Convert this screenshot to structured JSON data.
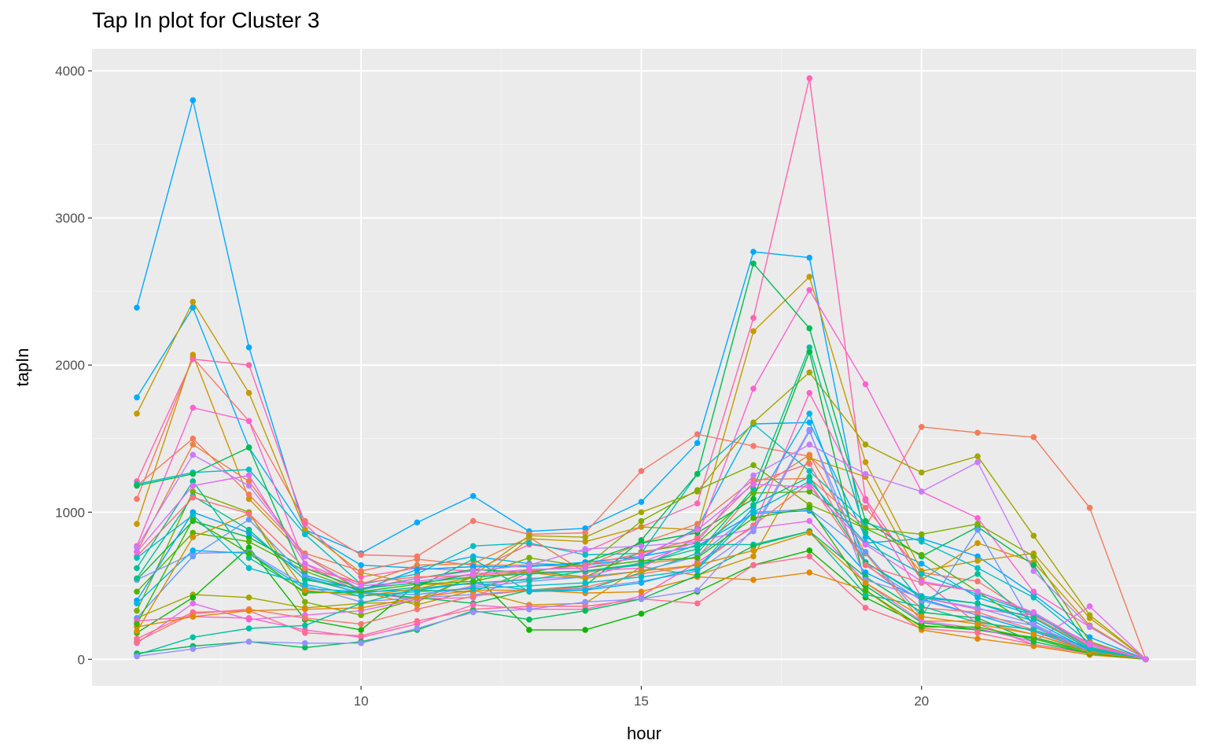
{
  "chart_data": {
    "type": "line",
    "title": "Tap In plot for Cluster 3",
    "xlabel": "hour",
    "ylabel": "tapIn",
    "x": [
      6,
      7,
      8,
      9,
      10,
      11,
      12,
      13,
      14,
      15,
      16,
      17,
      18,
      19,
      20,
      21,
      22,
      23,
      24
    ],
    "xlim": [
      5.2,
      24.9
    ],
    "ylim": [
      -180,
      4150
    ],
    "x_ticks": [
      10,
      15,
      20
    ],
    "y_ticks": [
      0,
      1000,
      2000,
      3000,
      4000
    ],
    "grid": true,
    "legend": "none",
    "background_color": "#ebebeb",
    "grid_color": "#ffffff",
    "series": [
      {
        "color": "#00a9ff",
        "values": [
          2390,
          3800,
          2120,
          880,
          720,
          930,
          1110,
          870,
          890,
          1070,
          1470,
          2770,
          2730,
          790,
          820,
          700,
          440,
          150,
          0
        ]
      },
      {
        "color": "#00b0f6",
        "values": [
          1780,
          2390,
          1440,
          870,
          640,
          620,
          700,
          650,
          640,
          690,
          890,
          1600,
          1610,
          830,
          650,
          420,
          300,
          110,
          0
        ]
      },
      {
        "color": "#f8766d",
        "values": [
          1090,
          2050,
          1620,
          940,
          710,
          700,
          940,
          850,
          860,
          1280,
          1530,
          1450,
          1380,
          1030,
          590,
          530,
          290,
          80,
          0
        ]
      },
      {
        "color": "#ff64b0",
        "values": [
          1210,
          2040,
          2000,
          920,
          560,
          620,
          600,
          780,
          730,
          900,
          1060,
          2320,
          3950,
          1090,
          540,
          240,
          100,
          40,
          0
        ]
      },
      {
        "color": "#c49a00",
        "values": [
          1670,
          2430,
          1810,
          880,
          590,
          510,
          510,
          820,
          800,
          900,
          880,
          2230,
          2600,
          1340,
          600,
          670,
          720,
          280,
          0
        ]
      },
      {
        "color": "#cd9600",
        "values": [
          920,
          2070,
          1090,
          700,
          460,
          370,
          470,
          370,
          380,
          630,
          570,
          700,
          1370,
          1240,
          540,
          790,
          660,
          230,
          0
        ]
      },
      {
        "color": "#f37b59",
        "values": [
          1180,
          1500,
          1120,
          720,
          600,
          680,
          640,
          640,
          630,
          790,
          920,
          1220,
          1230,
          900,
          1580,
          1540,
          1510,
          1030,
          0
        ]
      },
      {
        "color": "#ed8141",
        "values": [
          730,
          1460,
          1210,
          700,
          510,
          640,
          650,
          830,
          590,
          650,
          690,
          1140,
          1390,
          720,
          260,
          260,
          170,
          60,
          0
        ]
      },
      {
        "color": "#fd61d1",
        "values": [
          770,
          1710,
          1620,
          650,
          450,
          410,
          420,
          590,
          600,
          620,
          830,
          1840,
          2510,
          1870,
          1140,
          960,
          460,
          220,
          0
        ]
      },
      {
        "color": "#00bfc4",
        "values": [
          1190,
          1270,
          1290,
          850,
          510,
          580,
          770,
          790,
          710,
          720,
          1260,
          1600,
          1280,
          930,
          800,
          620,
          420,
          110,
          0
        ]
      },
      {
        "color": "#00bc56",
        "values": [
          1180,
          1260,
          1440,
          550,
          450,
          420,
          380,
          470,
          500,
          810,
          1260,
          2690,
          2250,
          940,
          700,
          900,
          640,
          80,
          0
        ]
      },
      {
        "color": "#a3a500",
        "values": [
          280,
          440,
          420,
          350,
          380,
          390,
          570,
          840,
          830,
          1000,
          1140,
          1610,
          1950,
          1460,
          1270,
          1380,
          840,
          300,
          0
        ]
      },
      {
        "color": "#7cae00",
        "values": [
          330,
          1140,
          1000,
          390,
          300,
          410,
          560,
          690,
          630,
          940,
          1150,
          1320,
          1050,
          890,
          850,
          920,
          700,
          120,
          0
        ]
      },
      {
        "color": "#00ba38",
        "values": [
          540,
          940,
          830,
          620,
          480,
          550,
          610,
          590,
          660,
          790,
          860,
          1090,
          2090,
          500,
          250,
          200,
          150,
          50,
          0
        ]
      },
      {
        "color": "#53b400",
        "values": [
          460,
          860,
          800,
          600,
          460,
          470,
          460,
          600,
          560,
          730,
          790,
          1130,
          1140,
          890,
          710,
          460,
          220,
          60,
          0
        ]
      },
      {
        "color": "#00c094",
        "values": [
          620,
          1210,
          690,
          460,
          450,
          490,
          680,
          460,
          470,
          590,
          720,
          1160,
          2120,
          860,
          390,
          580,
          240,
          40,
          0
        ]
      },
      {
        "color": "#0cb702",
        "values": [
          180,
          420,
          760,
          270,
          200,
          510,
          580,
          200,
          200,
          310,
          460,
          640,
          740,
          420,
          230,
          200,
          140,
          40,
          0
        ]
      },
      {
        "color": "#00a5ff",
        "values": [
          400,
          1000,
          860,
          570,
          470,
          610,
          630,
          630,
          660,
          700,
          770,
          990,
          1010,
          590,
          410,
          300,
          190,
          60,
          0
        ]
      },
      {
        "color": "#619cff",
        "values": [
          280,
          700,
          950,
          560,
          450,
          440,
          490,
          530,
          560,
          600,
          700,
          1000,
          1020,
          730,
          290,
          880,
          220,
          60,
          0
        ]
      },
      {
        "color": "#8494ff",
        "values": [
          540,
          720,
          730,
          500,
          390,
          420,
          440,
          470,
          480,
          530,
          600,
          870,
          1550,
          640,
          400,
          300,
          230,
          70,
          0
        ]
      },
      {
        "color": "#c77cff",
        "values": [
          760,
          1390,
          1180,
          700,
          470,
          550,
          600,
          640,
          750,
          770,
          800,
          1250,
          1460,
          1260,
          1140,
          1340,
          600,
          220,
          0
        ]
      },
      {
        "color": "#e76bf3",
        "values": [
          110,
          380,
          270,
          300,
          330,
          410,
          500,
          550,
          560,
          660,
          800,
          890,
          940,
          520,
          260,
          210,
          120,
          360,
          0
        ]
      },
      {
        "color": "#ff61c3",
        "values": [
          260,
          290,
          280,
          200,
          150,
          240,
          370,
          340,
          340,
          430,
          660,
          900,
          1810,
          1080,
          420,
          340,
          300,
          110,
          0
        ]
      },
      {
        "color": "#f8766d",
        "values": [
          120,
          310,
          340,
          280,
          240,
          340,
          430,
          470,
          490,
          580,
          640,
          910,
          1200,
          650,
          350,
          320,
          200,
          60,
          0
        ]
      },
      {
        "color": "#ff6c91",
        "values": [
          140,
          320,
          330,
          180,
          160,
          260,
          340,
          360,
          360,
          410,
          380,
          640,
          700,
          350,
          210,
          180,
          100,
          40,
          0
        ]
      },
      {
        "color": "#e58700",
        "values": [
          220,
          290,
          330,
          340,
          350,
          420,
          470,
          470,
          450,
          460,
          560,
          540,
          590,
          470,
          200,
          140,
          90,
          30,
          0
        ]
      },
      {
        "color": "#00c1a3",
        "values": [
          30,
          150,
          210,
          230,
          380,
          480,
          520,
          540,
          600,
          640,
          780,
          780,
          870,
          440,
          360,
          250,
          200,
          80,
          0
        ]
      },
      {
        "color": "#00bd5c",
        "values": [
          40,
          90,
          120,
          80,
          120,
          200,
          330,
          270,
          330,
          410,
          570,
          770,
          870,
          560,
          320,
          280,
          120,
          40,
          0
        ]
      },
      {
        "color": "#00b4f0",
        "values": [
          380,
          740,
          720,
          480,
          460,
          470,
          520,
          470,
          470,
          520,
          620,
          1030,
          1670,
          660,
          430,
          380,
          260,
          60,
          0
        ]
      },
      {
        "color": "#9590ff",
        "values": [
          20,
          70,
          120,
          110,
          110,
          210,
          320,
          340,
          390,
          410,
          470,
          890,
          1560,
          540,
          420,
          350,
          240,
          50,
          0
        ]
      },
      {
        "color": "#39b600",
        "values": [
          240,
          950,
          720,
          450,
          460,
          510,
          530,
          610,
          620,
          670,
          690,
          960,
          1030,
          470,
          220,
          220,
          140,
          40,
          0
        ]
      },
      {
        "color": "#d89000",
        "values": [
          190,
          830,
          990,
          470,
          430,
          480,
          560,
          590,
          550,
          600,
          640,
          740,
          860,
          520,
          290,
          240,
          170,
          50,
          0
        ]
      },
      {
        "color": "#00c08b",
        "values": [
          550,
          1110,
          880,
          540,
          480,
          520,
          560,
          580,
          600,
          650,
          750,
          1050,
          1240,
          660,
          420,
          380,
          280,
          70,
          0
        ]
      },
      {
        "color": "#fb727c",
        "values": [
          700,
          1100,
          990,
          620,
          520,
          560,
          570,
          600,
          640,
          720,
          820,
          1200,
          1330,
          640,
          520,
          460,
          310,
          90,
          0
        ]
      },
      {
        "color": "#00beca",
        "values": [
          690,
          980,
          620,
          510,
          430,
          460,
          480,
          500,
          520,
          560,
          610,
          1000,
          1210,
          790,
          580,
          440,
          310,
          80,
          0
        ]
      },
      {
        "color": "#e46bf3",
        "values": [
          730,
          1180,
          1250,
          650,
          500,
          530,
          580,
          610,
          620,
          700,
          880,
          1190,
          1170,
          780,
          530,
          460,
          320,
          100,
          0
        ]
      }
    ]
  }
}
